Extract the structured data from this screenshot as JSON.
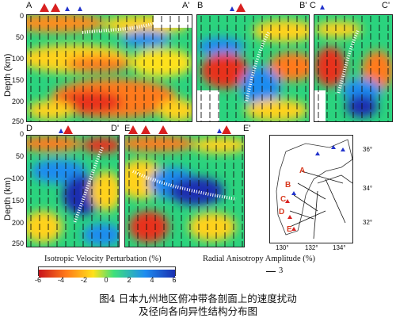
{
  "top_panels": [
    {
      "start": "A",
      "end": "A'"
    },
    {
      "start": "B",
      "end": "B'"
    },
    {
      "start": "C",
      "end": "C'"
    }
  ],
  "bottom_panels": [
    {
      "start": "D",
      "end": "D'"
    },
    {
      "start": "E",
      "end": "E'"
    }
  ],
  "depth_label": "Depth (km)",
  "depth_ticks": [
    "0",
    "50",
    "100",
    "150",
    "200",
    "250"
  ],
  "colorbar": {
    "title": "Isotropic Velocity Perturbation (%)",
    "ticks": [
      "-6",
      "-4",
      "-2",
      "0",
      "2",
      "4",
      "6"
    ],
    "colors": [
      "#c8141c",
      "#ff7a1a",
      "#ffe11a",
      "#3fe07a",
      "#1e8cf0",
      "#1a2fb0"
    ]
  },
  "anisotropy_legend": {
    "title": "Radial Anisotropy Amplitude (%)",
    "value": "3"
  },
  "map": {
    "lat_ticks": [
      "36°",
      "34°",
      "32°"
    ],
    "lon_ticks": [
      "130°",
      "132°",
      "134°"
    ],
    "section_labels": [
      "A",
      "B",
      "C",
      "D",
      "E"
    ]
  },
  "caption": {
    "line1": "图4  日本九州地区俯冲带各剖面上的速度扰动",
    "line2": "及径向各向异性结构分布图"
  }
}
